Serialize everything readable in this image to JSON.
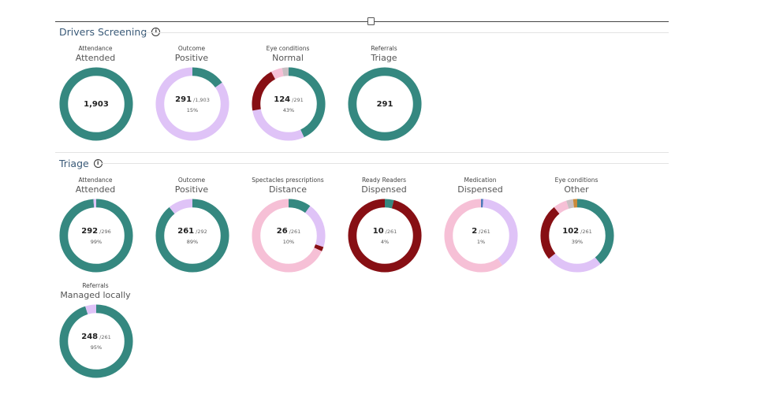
{
  "colors": {
    "teal": "#358880",
    "lavender": "#dfc3f7",
    "pink": "#f6c0d6",
    "darkred": "#870f14",
    "gray": "#c9bfc3",
    "blue": "#4a78b8",
    "orange": "#c98a3a"
  },
  "sections": [
    {
      "title": "Drivers Screening",
      "cards": [
        {
          "label": "Attendance",
          "value": "Attended",
          "num": "1,903",
          "den": "",
          "pct": "",
          "segments": [
            {
              "color": "teal",
              "value": 1
            }
          ]
        },
        {
          "label": "Outcome",
          "value": "Positive",
          "num": "291",
          "den": "/1,903",
          "pct": "15%",
          "segments": [
            {
              "color": "teal",
              "value": 0.15
            },
            {
              "color": "lavender",
              "value": 0.85
            }
          ]
        },
        {
          "label": "Eye conditions",
          "value": "Normal",
          "num": "124",
          "den": "/291",
          "pct": "43%",
          "segments": [
            {
              "color": "teal",
              "value": 0.43
            },
            {
              "color": "lavender",
              "value": 0.29
            },
            {
              "color": "darkred",
              "value": 0.2
            },
            {
              "color": "pink",
              "value": 0.05
            },
            {
              "color": "gray",
              "value": 0.03
            }
          ]
        },
        {
          "label": "Referrals",
          "value": "Triage",
          "num": "291",
          "den": "",
          "pct": "",
          "segments": [
            {
              "color": "teal",
              "value": 1
            }
          ]
        }
      ]
    },
    {
      "title": "Triage",
      "cards": [
        {
          "label": "Attendance",
          "value": "Attended",
          "num": "292",
          "den": "/296",
          "pct": "99%",
          "segments": [
            {
              "color": "teal",
              "value": 0.986
            },
            {
              "color": "lavender",
              "value": 0.014
            }
          ]
        },
        {
          "label": "Outcome",
          "value": "Positive",
          "num": "261",
          "den": "/292",
          "pct": "89%",
          "segments": [
            {
              "color": "teal",
              "value": 0.89
            },
            {
              "color": "lavender",
              "value": 0.11
            }
          ]
        },
        {
          "label": "Spectacles prescriptions",
          "value": "Distance",
          "num": "26",
          "den": "/261",
          "pct": "10%",
          "segments": [
            {
              "color": "teal",
              "value": 0.1
            },
            {
              "color": "lavender",
              "value": 0.2
            },
            {
              "color": "darkred",
              "value": 0.02
            },
            {
              "color": "pink",
              "value": 0.68
            }
          ]
        },
        {
          "label": "Ready Readers",
          "value": "Dispensed",
          "num": "10",
          "den": "/261",
          "pct": "4%",
          "segments": [
            {
              "color": "teal",
              "value": 0.04
            },
            {
              "color": "darkred",
              "value": 0.96
            }
          ]
        },
        {
          "label": "Medication",
          "value": "Dispensed",
          "num": "2",
          "den": "/261",
          "pct": "1%",
          "segments": [
            {
              "color": "blue",
              "value": 0.01
            },
            {
              "color": "lavender",
              "value": 0.39
            },
            {
              "color": "pink",
              "value": 0.6
            }
          ]
        },
        {
          "label": "Eye conditions",
          "value": "Other",
          "num": "102",
          "den": "/261",
          "pct": "39%",
          "segments": [
            {
              "color": "teal",
              "value": 0.39
            },
            {
              "color": "lavender",
              "value": 0.25
            },
            {
              "color": "darkred",
              "value": 0.25
            },
            {
              "color": "pink",
              "value": 0.06
            },
            {
              "color": "gray",
              "value": 0.03
            },
            {
              "color": "orange",
              "value": 0.02
            }
          ]
        },
        {
          "label": "Referrals",
          "value": "Managed locally",
          "num": "248",
          "den": "/261",
          "pct": "95%",
          "segments": [
            {
              "color": "teal",
              "value": 0.95
            },
            {
              "color": "lavender",
              "value": 0.05
            }
          ]
        }
      ]
    }
  ]
}
